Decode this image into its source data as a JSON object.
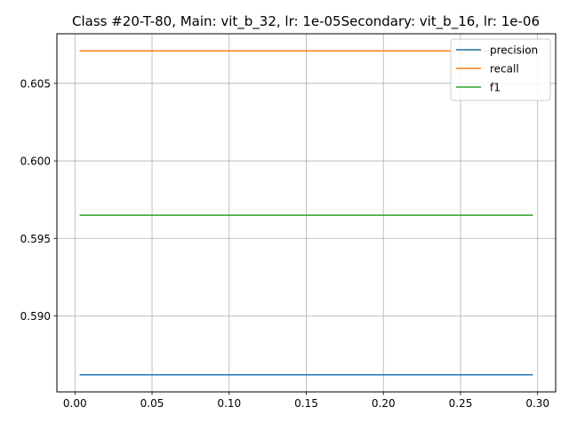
{
  "chart_data": {
    "type": "line",
    "title": "Class #20-T-80, Main: vit_b_32, lr: 1e-05Secondary: vit_b_16, lr: 1e-06",
    "xlabel": "",
    "ylabel": "",
    "xlim": [
      -0.0117,
      0.3117
    ],
    "ylim": [
      0.5851,
      0.6082
    ],
    "grid": true,
    "legend_position": "top-right",
    "x_ticks": [
      0.0,
      0.05,
      0.1,
      0.15,
      0.2,
      0.25,
      0.3
    ],
    "x_tick_labels": [
      "0.00",
      "0.05",
      "0.10",
      "0.15",
      "0.20",
      "0.25",
      "0.30"
    ],
    "y_ticks": [
      0.59,
      0.595,
      0.6,
      0.605
    ],
    "y_tick_labels": [
      "0.590",
      "0.595",
      "0.600",
      "0.605"
    ],
    "x": [
      0.003,
      0.297
    ],
    "series": [
      {
        "name": "precision",
        "color": "#1f77b4",
        "values": [
          0.5862,
          0.5862
        ]
      },
      {
        "name": "recall",
        "color": "#ff7f0e",
        "values": [
          0.6071,
          0.6071
        ]
      },
      {
        "name": "f1",
        "color": "#2ca02c",
        "values": [
          0.5965,
          0.5965
        ]
      }
    ]
  }
}
